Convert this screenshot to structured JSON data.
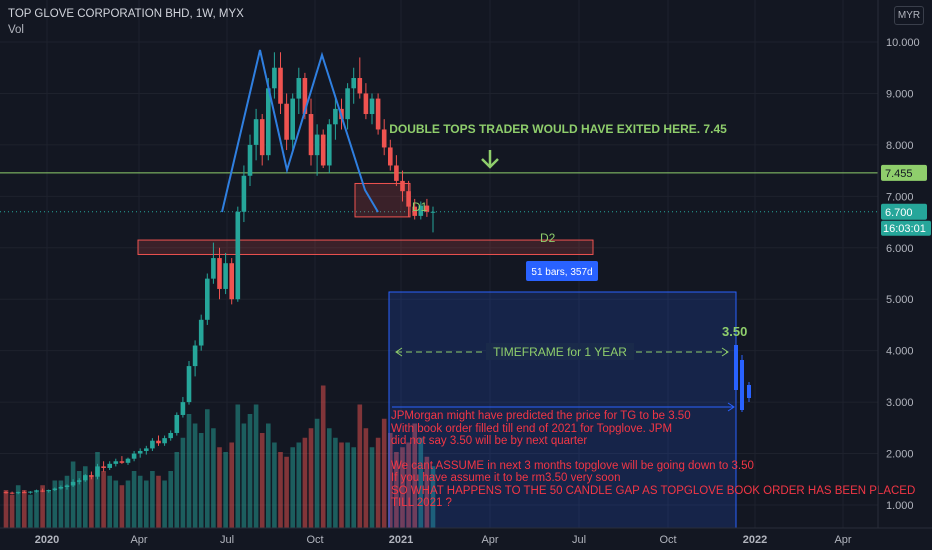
{
  "header": {
    "title": "TOP GLOVE CORPORATION BHD, 1W, MYX",
    "indicator": "Vol",
    "currency": "MYR"
  },
  "chart_data": {
    "type": "candlestick",
    "y_ticks": [
      1.0,
      2.0,
      3.0,
      4.0,
      5.0,
      6.0,
      7.0,
      8.0,
      9.0,
      10.0
    ],
    "ylim": [
      0.72,
      10.32
    ],
    "x_ticks": [
      "2020",
      "Apr",
      "Jul",
      "Oct",
      "2021",
      "Apr",
      "Jul",
      "Oct",
      "2022",
      "Apr"
    ],
    "price_labels": {
      "hline": "7.455",
      "last": "6.700",
      "countdown": "16:03:01"
    },
    "annotations": {
      "exit_text": "DOUBLE TOPS TRADER WOULD HAVE EXITED HERE. 7.45",
      "d1": "D1",
      "d2": "D2",
      "bars_badge": "51 bars, 357d",
      "target": "3.50",
      "timeframe": "TIMEFRAME for 1 YEAR",
      "note_lines": [
        "JPMorgan might have predicted the price for TG to be 3.50",
        "With book order filled till end of 2021 for Topglove. JPM",
        "did not say 3.50 will be by next quarter",
        "",
        "We cant ASSUME in next 3 months topglove will be going down to 3.50",
        "If you have assume it to be rm3.50 very soon",
        "SO WHAT HAPPENS TO THE 50 CANDLE GAP AS TOPGLOVE BOOK ORDER HAS BEEN PLACED",
        "TILL 2021 ?"
      ]
    },
    "colors": {
      "up": "#26a69a",
      "down": "#ef5350",
      "hline": "#8fce6c",
      "box": "#ef5350",
      "projection": "#2962ff",
      "pattern": "#2f7fe0",
      "note_text": "#f23645"
    },
    "candles": [
      [
        1.25,
        1.27,
        1.22,
        1.24
      ],
      [
        1.24,
        1.26,
        1.21,
        1.23
      ],
      [
        1.23,
        1.26,
        1.21,
        1.25
      ],
      [
        1.25,
        1.28,
        1.23,
        1.24
      ],
      [
        1.24,
        1.27,
        1.22,
        1.26
      ],
      [
        1.26,
        1.3,
        1.24,
        1.28
      ],
      [
        1.28,
        1.32,
        1.25,
        1.27
      ],
      [
        1.27,
        1.3,
        1.24,
        1.29
      ],
      [
        1.29,
        1.34,
        1.27,
        1.32
      ],
      [
        1.32,
        1.38,
        1.3,
        1.35
      ],
      [
        1.35,
        1.4,
        1.3,
        1.38
      ],
      [
        1.38,
        1.5,
        1.35,
        1.45
      ],
      [
        1.45,
        1.52,
        1.4,
        1.48
      ],
      [
        1.48,
        1.6,
        1.45,
        1.58
      ],
      [
        1.58,
        1.65,
        1.5,
        1.55
      ],
      [
        1.55,
        1.8,
        1.5,
        1.75
      ],
      [
        1.75,
        1.85,
        1.65,
        1.72
      ],
      [
        1.72,
        1.85,
        1.68,
        1.8
      ],
      [
        1.8,
        1.9,
        1.75,
        1.85
      ],
      [
        1.85,
        1.95,
        1.8,
        1.82
      ],
      [
        1.82,
        1.92,
        1.78,
        1.9
      ],
      [
        1.9,
        2.05,
        1.85,
        2.0
      ],
      [
        2.0,
        2.1,
        1.92,
        2.05
      ],
      [
        2.05,
        2.15,
        1.98,
        2.1
      ],
      [
        2.1,
        2.3,
        2.05,
        2.25
      ],
      [
        2.25,
        2.35,
        2.15,
        2.2
      ],
      [
        2.2,
        2.35,
        2.15,
        2.3
      ],
      [
        2.3,
        2.45,
        2.25,
        2.4
      ],
      [
        2.4,
        2.8,
        2.35,
        2.75
      ],
      [
        2.75,
        3.1,
        2.7,
        3.0
      ],
      [
        3.0,
        3.8,
        2.95,
        3.7
      ],
      [
        3.7,
        4.2,
        3.5,
        4.1
      ],
      [
        4.1,
        4.7,
        4.0,
        4.6
      ],
      [
        4.6,
        5.5,
        4.5,
        5.4
      ],
      [
        5.4,
        6.1,
        5.3,
        5.8
      ],
      [
        5.8,
        6.0,
        5.0,
        5.2
      ],
      [
        5.2,
        5.9,
        5.1,
        5.7
      ],
      [
        5.7,
        5.8,
        4.9,
        5.0
      ],
      [
        5.0,
        6.8,
        4.95,
        6.7
      ],
      [
        6.7,
        7.6,
        6.5,
        7.4
      ],
      [
        7.4,
        8.2,
        7.2,
        8.0
      ],
      [
        8.0,
        8.7,
        7.7,
        8.5
      ],
      [
        8.5,
        8.6,
        7.6,
        7.8
      ],
      [
        7.8,
        9.3,
        7.7,
        9.1
      ],
      [
        9.1,
        9.8,
        8.9,
        9.5
      ],
      [
        9.5,
        9.8,
        8.6,
        8.8
      ],
      [
        8.8,
        9.0,
        7.9,
        8.1
      ],
      [
        8.1,
        9.0,
        7.9,
        8.9
      ],
      [
        8.9,
        9.5,
        8.6,
        9.3
      ],
      [
        9.3,
        9.4,
        8.5,
        8.6
      ],
      [
        8.6,
        8.9,
        7.6,
        7.8
      ],
      [
        7.8,
        8.4,
        7.4,
        8.2
      ],
      [
        8.2,
        8.3,
        7.55,
        7.6
      ],
      [
        7.6,
        8.5,
        7.45,
        8.4
      ],
      [
        8.4,
        8.9,
        8.1,
        8.7
      ],
      [
        8.7,
        8.9,
        8.3,
        8.5
      ],
      [
        8.5,
        9.2,
        8.3,
        9.1
      ],
      [
        9.1,
        9.5,
        8.8,
        9.3
      ],
      [
        9.3,
        9.7,
        8.9,
        9.0
      ],
      [
        9.0,
        9.2,
        8.5,
        8.6
      ],
      [
        8.6,
        9.0,
        8.4,
        8.9
      ],
      [
        8.9,
        9.0,
        8.2,
        8.3
      ],
      [
        8.3,
        8.5,
        7.8,
        7.95
      ],
      [
        7.95,
        8.1,
        7.5,
        7.6
      ],
      [
        7.6,
        7.8,
        7.2,
        7.3
      ],
      [
        7.3,
        7.5,
        6.9,
        7.1
      ],
      [
        7.1,
        7.3,
        6.6,
        6.8
      ],
      [
        6.8,
        6.95,
        6.55,
        6.62
      ],
      [
        6.62,
        6.9,
        6.55,
        6.82
      ],
      [
        6.82,
        6.95,
        6.6,
        6.7
      ],
      [
        6.7,
        6.8,
        6.3,
        6.7
      ]
    ],
    "volumes": [
      0.8,
      0.7,
      0.9,
      0.8,
      0.7,
      0.8,
      0.9,
      0.8,
      1.0,
      1.0,
      1.1,
      1.4,
      1.2,
      1.3,
      1.1,
      1.6,
      1.2,
      1.1,
      1.0,
      0.9,
      1.0,
      1.2,
      1.1,
      1.0,
      1.2,
      1.1,
      1.0,
      1.2,
      1.6,
      1.9,
      2.4,
      2.2,
      2.0,
      2.5,
      2.1,
      1.7,
      1.6,
      1.8,
      2.6,
      2.2,
      2.4,
      2.6,
      2.0,
      2.2,
      1.8,
      1.6,
      1.5,
      1.7,
      1.8,
      1.9,
      2.1,
      2.3,
      3.0,
      2.1,
      1.9,
      1.8,
      1.8,
      1.7,
      2.6,
      2.1,
      1.7,
      1.9,
      2.3,
      2.0,
      1.6,
      1.7,
      1.8,
      2.2,
      1.9,
      1.5,
      1.3
    ]
  }
}
